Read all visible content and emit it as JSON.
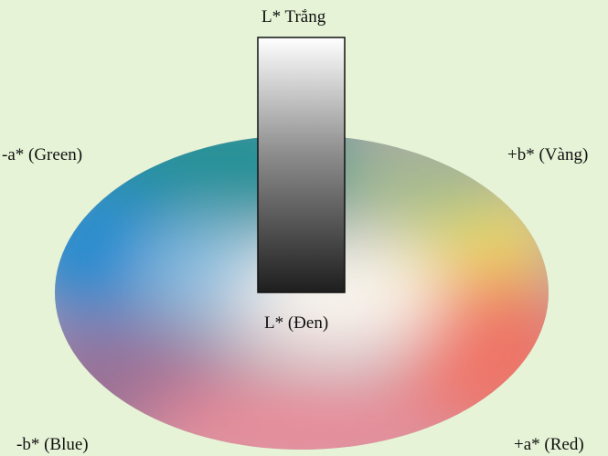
{
  "labels": {
    "top": "L* Trắng",
    "bottom": "L* (Đen)",
    "upper_left": "-a* (Green)",
    "upper_right": "+b* (Vàng)",
    "lower_left": "-b* (Blue)",
    "lower_right": "+a* (Red)"
  },
  "colors": {
    "background": "#e6f3d6",
    "green": "#1f8f95",
    "yellow": "#f2e35a",
    "blue": "#1f8ad0",
    "red": "#ee7466",
    "purple": "#9a6f94",
    "white_center": "#fbf7ef",
    "lightness_top": "#ffffff",
    "lightness_bottom": "#1e1e1e"
  }
}
